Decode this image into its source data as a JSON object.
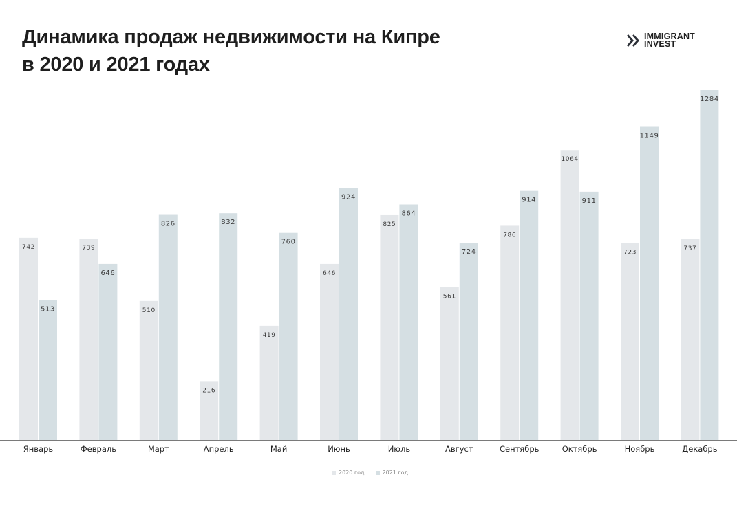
{
  "title_line1": "Динамика продаж недвижимости на Кипре",
  "title_line2": "в 2020 и 2021 годах",
  "logo": {
    "line1": "IMMIGRANT",
    "line2": "INVEST",
    "icon": "double-chevron-icon",
    "color": "#2b2f36"
  },
  "colors": {
    "2020": "#e4e7ea",
    "2021": "#d5dfe3",
    "axis": "#7a7a7a"
  },
  "chart_data": {
    "type": "bar",
    "categories": [
      "Январь",
      "Февраль",
      "Март",
      "Апрель",
      "Май",
      "Июнь",
      "Июль",
      "Август",
      "Сентябрь",
      "Октябрь",
      "Ноябрь",
      "Декабрь"
    ],
    "series": [
      {
        "name": "2020 год",
        "values": [
          742,
          739,
          510,
          216,
          419,
          646,
          825,
          561,
          786,
          1064,
          723,
          737
        ]
      },
      {
        "name": "2021 год",
        "values": [
          513,
          646,
          826,
          832,
          760,
          924,
          864,
          724,
          914,
          911,
          1149,
          1284
        ]
      }
    ],
    "title": "Динамика продаж недвижимости на Кипре в 2020 и 2021 годах",
    "xlabel": "",
    "ylabel": "",
    "grid": false,
    "legend": "bottom-center"
  }
}
